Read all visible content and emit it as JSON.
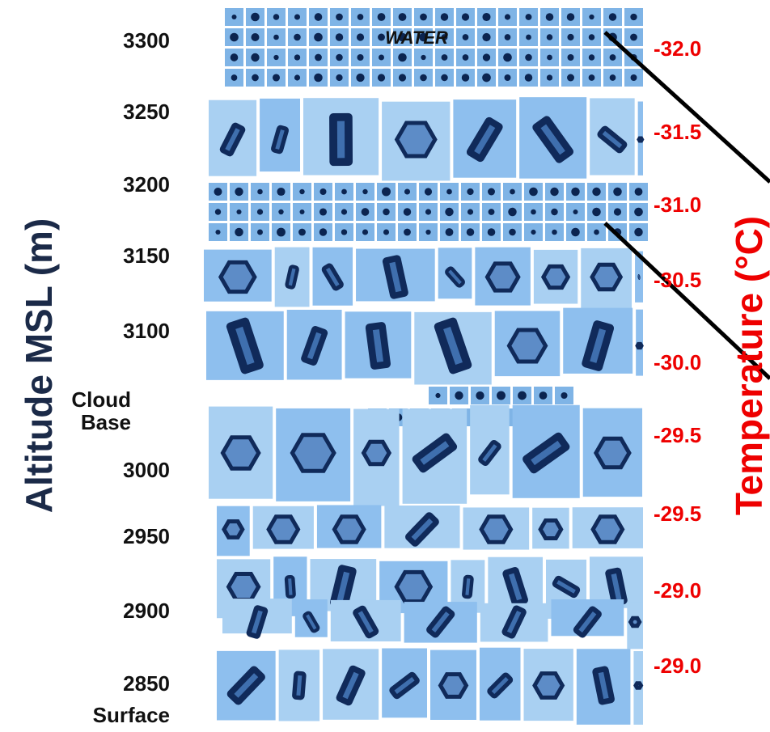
{
  "annotation": "WATER",
  "left_axis": {
    "title": "Altitude MSL (m)",
    "labels": [
      "3300",
      "3250",
      "3200",
      "3150",
      "3100",
      "Cloud Base",
      "3000",
      "2950",
      "2900",
      "2850",
      "Surface"
    ]
  },
  "right_axis": {
    "title": "Temperature (°C)",
    "labels": [
      "-32.0",
      "-31.5",
      "-31.0",
      "-30.5",
      "-30.0",
      "-29.5",
      "-29.5",
      "-29.0",
      "-29.0"
    ]
  }
}
